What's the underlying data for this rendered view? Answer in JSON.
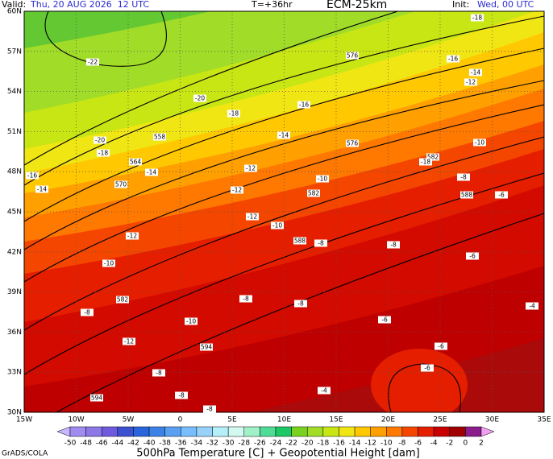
{
  "header": {
    "valid_label": "Valid:",
    "valid_time": "Thu, 20 AUG 2026  12 UTC",
    "forecast_hour": "T=+36hr",
    "model": "ECM-25km",
    "init_label": "Init:",
    "init_time": "Wed, 00 UTC"
  },
  "map": {
    "lat_labels": [
      "60N",
      "57N",
      "54N",
      "51N",
      "48N",
      "45N",
      "42N",
      "39N",
      "36N",
      "33N",
      "30N"
    ],
    "lon_labels": [
      "15W",
      "10W",
      "5W",
      "0",
      "5E",
      "10E",
      "15E",
      "20E",
      "25E",
      "30E",
      "35E"
    ],
    "contour_labels": [
      -22,
      -20,
      -20,
      -18,
      -16,
      -14,
      564,
      -14,
      570,
      558,
      -18,
      -16,
      -14,
      -12,
      -12,
      576,
      -16,
      -14,
      -12,
      -10,
      582,
      -8,
      588,
      -6,
      -10,
      582,
      -12,
      -10,
      -12,
      -10,
      582,
      -8,
      -8,
      -8,
      -10,
      -12,
      594,
      -8,
      -8,
      594,
      -8,
      -4,
      -6,
      -6,
      -6,
      -4,
      -6,
      -8,
      -8,
      588,
      -18,
      576,
      -18
    ]
  },
  "colorbar": {
    "labels": [
      -50,
      -48,
      -46,
      -44,
      -42,
      -40,
      -38,
      -36,
      -34,
      -32,
      -30,
      -28,
      -26,
      -24,
      -22,
      -20,
      -18,
      -16,
      -14,
      -12,
      -10,
      -8,
      -6,
      -4,
      -2,
      0,
      2
    ]
  },
  "caption": "500hPa Temperature [C] + Geopotential Height [dam]",
  "credit": "GrADS/COLA"
}
